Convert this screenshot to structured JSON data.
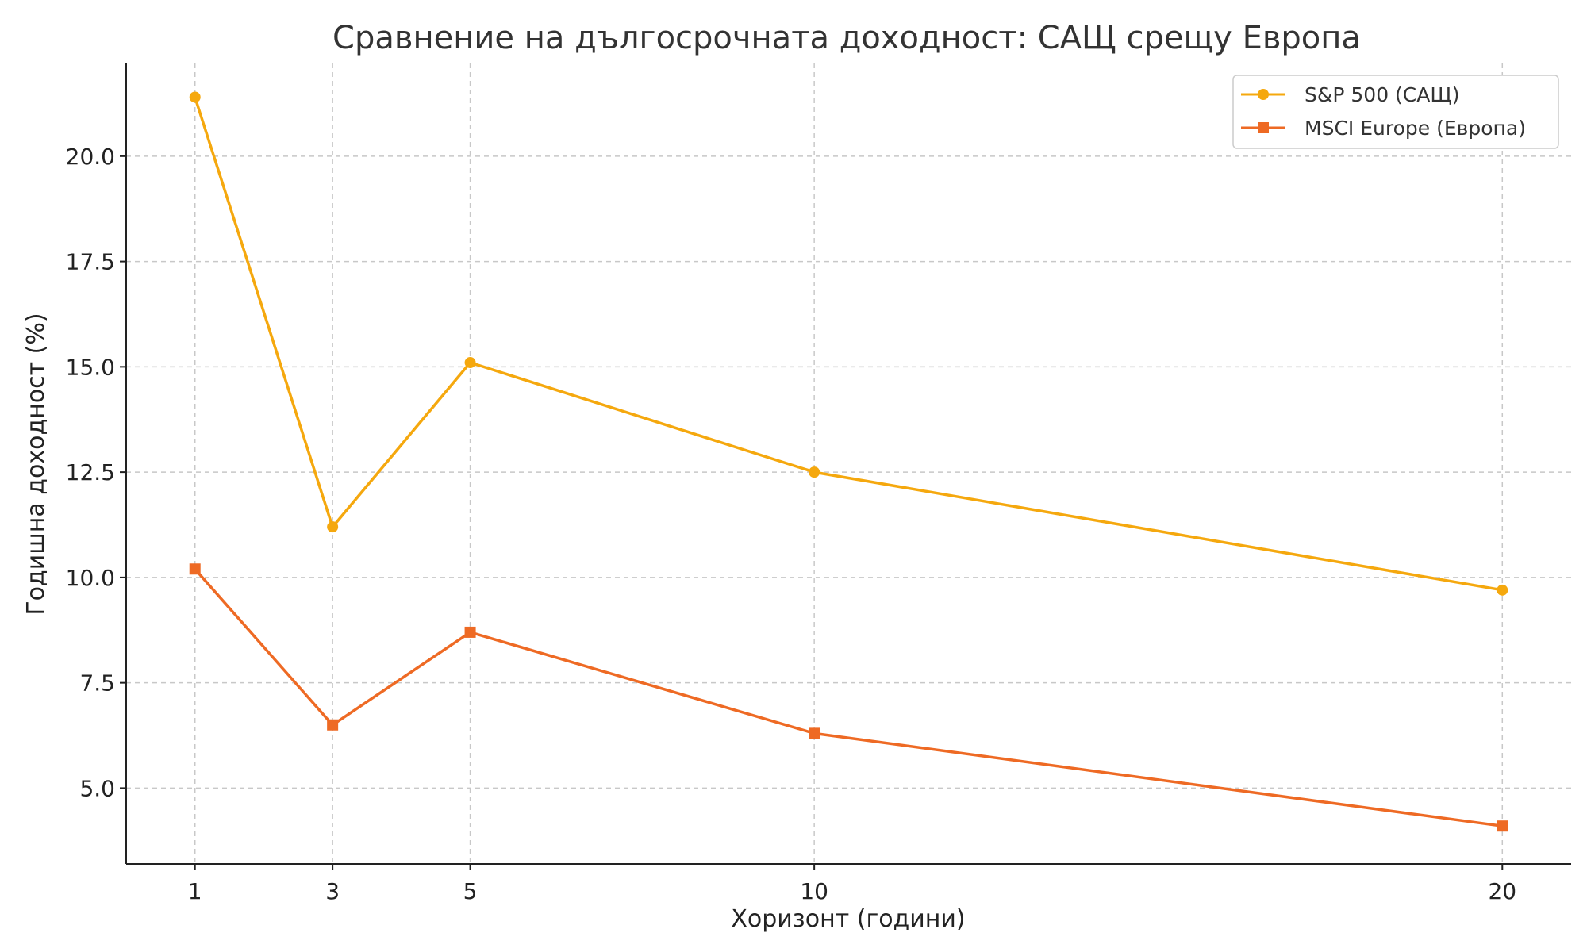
{
  "chart_data": {
    "type": "line",
    "title": "Сравнение на дългосрочната доходност: САЩ срещу Европа",
    "xlabel": "Хоризонт (години)",
    "ylabel": "Годишна доходност (%)",
    "x": [
      1,
      3,
      5,
      10,
      20
    ],
    "xlim": [
      0,
      21
    ],
    "ylim": [
      3.2,
      22.2
    ],
    "yticks": [
      5.0,
      7.5,
      10.0,
      12.5,
      15.0,
      17.5,
      20.0
    ],
    "ytick_labels": [
      "5.0",
      "7.5",
      "10.0",
      "12.5",
      "15.0",
      "17.5",
      "20.0"
    ],
    "xtick_labels": [
      "1",
      "3",
      "5",
      "10",
      "20"
    ],
    "grid": true,
    "legend_position": "top-right",
    "series": [
      {
        "name": "S&P 500 (САЩ)",
        "values": [
          21.4,
          11.2,
          15.1,
          12.5,
          9.7
        ],
        "color": "#F5A80E",
        "marker": "circle"
      },
      {
        "name": "MSCI Europe (Европа)",
        "values": [
          10.2,
          6.5,
          8.7,
          6.3,
          4.1
        ],
        "color": "#EE6A24",
        "marker": "square"
      }
    ]
  }
}
